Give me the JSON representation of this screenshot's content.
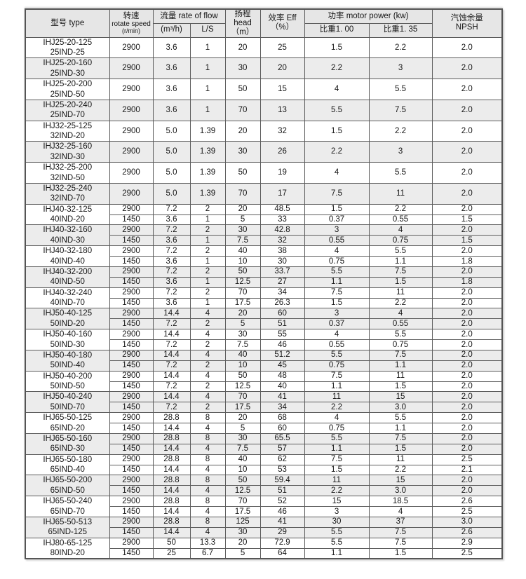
{
  "table": {
    "header": {
      "type": "型号  type",
      "rotate_cn": "转速",
      "rotate_en": "rotate speed",
      "rotate_unit": "(r/min)",
      "flow_group": "流量  rate of flow",
      "flow_m3h": "(m³/h)",
      "flow_ls": "L/S",
      "head_label": "扬程  head",
      "head_unit": "（m）",
      "eff_label": "效率  Eff",
      "eff_unit": "（%）",
      "power_group": "功率  motor power (kw)",
      "power_sg100": "比重1. 00",
      "power_sg135": "比重1. 35",
      "npsh_cn": "汽蚀余量",
      "npsh_en": "NPSH"
    },
    "colors": {
      "header_bg": "#e6e6e6",
      "row_alt_bg": "#ececec",
      "border": "#5c5c5c",
      "text": "#151515"
    },
    "groups": [
      {
        "model": "IHJ25-20-125",
        "code": "25IND-25",
        "rows": [
          [
            "2900",
            "3.6",
            "1",
            "20",
            "25",
            "1.5",
            "2.2",
            "2.0"
          ]
        ]
      },
      {
        "model": "IHJ25-20-160",
        "code": "25IND-30",
        "rows": [
          [
            "2900",
            "3.6",
            "1",
            "30",
            "20",
            "2.2",
            "3",
            "2.0"
          ]
        ]
      },
      {
        "model": "IHJ25-20-200",
        "code": "25IND-50",
        "rows": [
          [
            "2900",
            "3.6",
            "1",
            "50",
            "15",
            "4",
            "5.5",
            "2.0"
          ]
        ]
      },
      {
        "model": "IHJ25-20-240",
        "code": "25IND-70",
        "rows": [
          [
            "2900",
            "3.6",
            "1",
            "70",
            "13",
            "5.5",
            "7.5",
            "2.0"
          ]
        ]
      },
      {
        "model": "IHJ32-25-125",
        "code": "32IND-20",
        "rows": [
          [
            "2900",
            "5.0",
            "1.39",
            "20",
            "32",
            "1.5",
            "2.2",
            "2.0"
          ]
        ]
      },
      {
        "model": "IHJ32-25-160",
        "code": "32IND-30",
        "rows": [
          [
            "2900",
            "5.0",
            "1.39",
            "30",
            "26",
            "2.2",
            "3",
            "2.0"
          ]
        ]
      },
      {
        "model": "IHJ32-25-200",
        "code": "32IND-50",
        "rows": [
          [
            "2900",
            "5.0",
            "1.39",
            "50",
            "19",
            "4",
            "5.5",
            "2.0"
          ]
        ]
      },
      {
        "model": "IHJ32-25-240",
        "code": "32IND-70",
        "rows": [
          [
            "2900",
            "5.0",
            "1.39",
            "70",
            "17",
            "7.5",
            "11",
            "2.0"
          ]
        ]
      },
      {
        "model": "IHJ40-32-125",
        "code": "40IND-20",
        "rows": [
          [
            "2900",
            "7.2",
            "2",
            "20",
            "48.5",
            "1.5",
            "2.2",
            "2.0"
          ],
          [
            "1450",
            "3.6",
            "1",
            "5",
            "33",
            "0.37",
            "0.55",
            "1.5"
          ]
        ]
      },
      {
        "model": "IHJ40-32-160",
        "code": "40IND-30",
        "rows": [
          [
            "2900",
            "7.2",
            "2",
            "30",
            "42.8",
            "3",
            "4",
            "2.0"
          ],
          [
            "1450",
            "3.6",
            "1",
            "7.5",
            "32",
            "0.55",
            "0.75",
            "1.5"
          ]
        ]
      },
      {
        "model": "IHJ40-32-180",
        "code": "40IND-40",
        "rows": [
          [
            "2900",
            "7.2",
            "2",
            "40",
            "38",
            "4",
            "5.5",
            "2.0"
          ],
          [
            "1450",
            "3.6",
            "1",
            "10",
            "30",
            "0.75",
            "1.1",
            "1.8"
          ]
        ]
      },
      {
        "model": "IHJ40-32-200",
        "code": "40IND-50",
        "rows": [
          [
            "2900",
            "7.2",
            "2",
            "50",
            "33.7",
            "5.5",
            "7.5",
            "2.0"
          ],
          [
            "1450",
            "3.6",
            "1",
            "12.5",
            "27",
            "1.1",
            "1.5",
            "1.8"
          ]
        ]
      },
      {
        "model": "IHJ40-32-240",
        "code": "40IND-70",
        "rows": [
          [
            "2900",
            "7.2",
            "2",
            "70",
            "34",
            "7.5",
            "11",
            "2.0"
          ],
          [
            "1450",
            "3.6",
            "1",
            "17.5",
            "26.3",
            "1.5",
            "2.2",
            "2.0"
          ]
        ]
      },
      {
        "model": "IHJ50-40-125",
        "code": "50IND-20",
        "rows": [
          [
            "2900",
            "14.4",
            "4",
            "20",
            "60",
            "3",
            "4",
            "2.0"
          ],
          [
            "1450",
            "7.2",
            "2",
            "5",
            "51",
            "0.37",
            "0.55",
            "2.0"
          ]
        ]
      },
      {
        "model": "IHJ50-40-160",
        "code": "50IND-30",
        "rows": [
          [
            "2900",
            "14.4",
            "4",
            "30",
            "55",
            "4",
            "5.5",
            "2.0"
          ],
          [
            "1450",
            "7.2",
            "2",
            "7.5",
            "46",
            "0.55",
            "0.75",
            "2.0"
          ]
        ]
      },
      {
        "model": "IHJ50-40-180",
        "code": "50IND-40",
        "rows": [
          [
            "2900",
            "14.4",
            "4",
            "40",
            "51.2",
            "5.5",
            "7.5",
            "2.0"
          ],
          [
            "1450",
            "7.2",
            "2",
            "10",
            "45",
            "0.75",
            "1.1",
            "2.0"
          ]
        ]
      },
      {
        "model": "IHJ50-40-200",
        "code": "50IND-50",
        "rows": [
          [
            "2900",
            "14.4",
            "4",
            "50",
            "48",
            "7.5",
            "11",
            "2.0"
          ],
          [
            "1450",
            "7.2",
            "2",
            "12.5",
            "40",
            "1.1",
            "1.5",
            "2.0"
          ]
        ]
      },
      {
        "model": "IHJ50-40-240",
        "code": "50IND-70",
        "rows": [
          [
            "2900",
            "14.4",
            "4",
            "70",
            "41",
            "11",
            "15",
            "2.0"
          ],
          [
            "1450",
            "7.2",
            "2",
            "17.5",
            "34",
            "2.2",
            "3.0",
            "2.0"
          ]
        ]
      },
      {
        "model": "IHJ65-50-125",
        "code": "65IND-20",
        "rows": [
          [
            "2900",
            "28.8",
            "8",
            "20",
            "68",
            "4",
            "5.5",
            "2.0"
          ],
          [
            "1450",
            "14.4",
            "4",
            "5",
            "60",
            "0.75",
            "1.1",
            "2.0"
          ]
        ]
      },
      {
        "model": "IHJ65-50-160",
        "code": "65IND-30",
        "rows": [
          [
            "2900",
            "28.8",
            "8",
            "30",
            "65.5",
            "5.5",
            "7.5",
            "2.0"
          ],
          [
            "1450",
            "14.4",
            "4",
            "7.5",
            "57",
            "1.1",
            "1.5",
            "2.0"
          ]
        ]
      },
      {
        "model": "IHJ65-50-180",
        "code": "65IND-40",
        "rows": [
          [
            "2900",
            "28.8",
            "8",
            "40",
            "62",
            "7.5",
            "11",
            "2.5"
          ],
          [
            "1450",
            "14.4",
            "4",
            "10",
            "53",
            "1.5",
            "2.2",
            "2.1"
          ]
        ]
      },
      {
        "model": "IHJ65-50-200",
        "code": "65IND-50",
        "rows": [
          [
            "2900",
            "28.8",
            "8",
            "50",
            "59.4",
            "11",
            "15",
            "2.0"
          ],
          [
            "1450",
            "14.4",
            "4",
            "12.5",
            "51",
            "2.2",
            "3.0",
            "2.0"
          ]
        ]
      },
      {
        "model": "IHJ65-50-240",
        "code": "65IND-70",
        "rows": [
          [
            "2900",
            "28.8",
            "8",
            "70",
            "52",
            "15",
            "18.5",
            "2.6"
          ],
          [
            "1450",
            "14.4",
            "4",
            "17.5",
            "46",
            "3",
            "4",
            "2.5"
          ]
        ]
      },
      {
        "model": "IHJ65-50-513",
        "code": "65IND-125",
        "rows": [
          [
            "2900",
            "28.8",
            "8",
            "125",
            "41",
            "30",
            "37",
            "3.0"
          ],
          [
            "1450",
            "14.4",
            "4",
            "30",
            "29",
            "5.5",
            "7.5",
            "2.6"
          ]
        ]
      },
      {
        "model": "IHJ80-65-125",
        "code": "80IND-20",
        "rows": [
          [
            "2900",
            "50",
            "13.3",
            "20",
            "72.9",
            "5.5",
            "7.5",
            "2.9"
          ],
          [
            "1450",
            "25",
            "6.7",
            "5",
            "64",
            "1.1",
            "1.5",
            "2.5"
          ]
        ]
      }
    ]
  }
}
